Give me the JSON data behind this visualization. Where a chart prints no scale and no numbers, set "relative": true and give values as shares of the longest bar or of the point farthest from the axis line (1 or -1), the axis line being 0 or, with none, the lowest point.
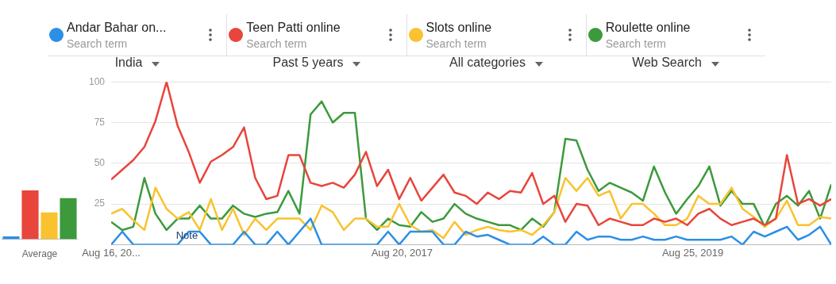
{
  "chart_data": [
    {
      "type": "line",
      "legend": "top",
      "legend_title": "Search term",
      "grid": "y",
      "annotations": [
        "India",
        "Past 5 years",
        "All categories",
        "Web Search",
        "Note"
      ],
      "xlim": [
        "2015-08-16",
        "2020-08-09"
      ],
      "xticks": [
        {
          "value": "2015-08-16",
          "label": "Aug 16, 20..."
        },
        {
          "value": "2017-08-20",
          "label": "Aug 20, 2017"
        },
        {
          "value": "2019-08-25",
          "label": "Aug 25, 2019"
        }
      ],
      "ylim": [
        0,
        100
      ],
      "yticks": [
        {
          "value": 0,
          "label": null
        },
        25,
        50,
        75,
        100
      ],
      "x": [
        "2015-08-16",
        "2015-09-13",
        "2015-10-11",
        "2015-11-08",
        "2015-12-06",
        "2016-01-03",
        "2016-01-31",
        "2016-02-28",
        "2016-03-27",
        "2016-04-24",
        "2016-05-22",
        "2016-06-19",
        "2016-07-17",
        "2016-08-14",
        "2016-09-11",
        "2016-10-09",
        "2016-11-06",
        "2016-12-04",
        "2017-01-01",
        "2017-01-29",
        "2017-02-26",
        "2017-03-26",
        "2017-04-23",
        "2017-05-21",
        "2017-06-18",
        "2017-07-16",
        "2017-08-13",
        "2017-09-10",
        "2017-10-08",
        "2017-11-05",
        "2017-12-03",
        "2017-12-31",
        "2018-01-28",
        "2018-02-25",
        "2018-03-25",
        "2018-04-22",
        "2018-05-20",
        "2018-06-17",
        "2018-07-15",
        "2018-08-12",
        "2018-09-09",
        "2018-10-07",
        "2018-11-04",
        "2018-12-02",
        "2018-12-30",
        "2019-01-27",
        "2019-02-24",
        "2019-03-24",
        "2019-04-21",
        "2019-05-19",
        "2019-06-16",
        "2019-07-14",
        "2019-08-11",
        "2019-09-08",
        "2019-10-06",
        "2019-11-03",
        "2019-12-01",
        "2019-12-29",
        "2020-01-26",
        "2020-02-23",
        "2020-03-22",
        "2020-04-19",
        "2020-05-17",
        "2020-06-14",
        "2020-07-12",
        "2020-08-09"
      ],
      "series": [
        {
          "name": "Andar Bahar on...",
          "color": "#2b8fe6",
          "values": [
            0,
            8,
            0,
            0,
            0,
            0,
            0,
            8,
            8,
            0,
            0,
            0,
            8,
            0,
            0,
            8,
            0,
            8,
            16,
            0,
            0,
            0,
            0,
            0,
            0,
            8,
            0,
            8,
            8,
            8,
            0,
            0,
            8,
            5,
            6,
            3,
            0,
            0,
            0,
            5,
            0,
            0,
            8,
            3,
            5,
            5,
            3,
            3,
            5,
            3,
            3,
            5,
            3,
            3,
            3,
            3,
            5,
            0,
            8,
            5,
            8,
            11,
            3,
            6,
            11,
            0
          ]
        },
        {
          "name": "Teen Patti online",
          "color": "#e8453c",
          "values": [
            40,
            46,
            52,
            60,
            76,
            100,
            73,
            57,
            38,
            51,
            55,
            60,
            72,
            41,
            28,
            30,
            55,
            55,
            38,
            36,
            38,
            35,
            43,
            57,
            36,
            46,
            28,
            41,
            27,
            35,
            43,
            32,
            30,
            25,
            32,
            28,
            33,
            32,
            44,
            25,
            30,
            14,
            25,
            24,
            12,
            16,
            14,
            12,
            12,
            16,
            14,
            16,
            12,
            19,
            22,
            16,
            12,
            14,
            16,
            12,
            16,
            55,
            25,
            28,
            24,
            28
          ]
        },
        {
          "name": "Slots online",
          "color": "#f9c22e",
          "values": [
            19,
            22,
            15,
            9,
            35,
            22,
            16,
            20,
            9,
            28,
            9,
            22,
            6,
            16,
            9,
            16,
            16,
            16,
            9,
            24,
            20,
            9,
            16,
            16,
            11,
            11,
            25,
            12,
            8,
            9,
            4,
            14,
            6,
            9,
            11,
            9,
            8,
            9,
            6,
            12,
            20,
            41,
            33,
            41,
            30,
            33,
            16,
            25,
            25,
            19,
            12,
            12,
            16,
            30,
            25,
            25,
            35,
            22,
            17,
            11,
            16,
            27,
            12,
            12,
            17,
            16
          ]
        },
        {
          "name": "Roulette online",
          "color": "#3c9a3c",
          "values": [
            14,
            9,
            11,
            41,
            19,
            9,
            16,
            16,
            24,
            16,
            16,
            24,
            19,
            17,
            19,
            20,
            33,
            19,
            80,
            88,
            75,
            81,
            81,
            16,
            9,
            16,
            12,
            11,
            20,
            14,
            16,
            25,
            19,
            16,
            14,
            12,
            12,
            9,
            16,
            11,
            20,
            65,
            64,
            46,
            33,
            38,
            35,
            32,
            27,
            48,
            32,
            19,
            28,
            36,
            48,
            24,
            33,
            25,
            25,
            11,
            25,
            30,
            24,
            33,
            16,
            37
          ]
        }
      ]
    },
    {
      "type": "bar",
      "relative": true,
      "xlabel": "Average",
      "categories": [
        null,
        null,
        null,
        null
      ],
      "colors": [
        "#2b8fe6",
        "#e8453c",
        "#f9c22e",
        "#3c9a3c"
      ],
      "values": [
        0.06,
        1,
        0.55,
        0.84
      ]
    }
  ]
}
